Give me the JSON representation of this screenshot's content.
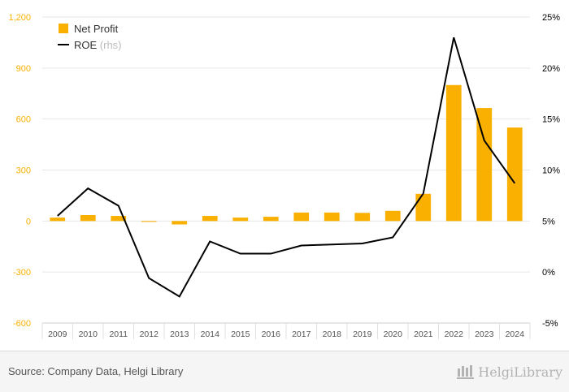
{
  "chart_data": {
    "type": "bar",
    "categories": [
      "2009",
      "2010",
      "2011",
      "2012",
      "2013",
      "2014",
      "2015",
      "2016",
      "2017",
      "2018",
      "2019",
      "2020",
      "2021",
      "2022",
      "2023",
      "2024"
    ],
    "series": [
      {
        "name": "Net Profit",
        "type": "bar",
        "axis": "left",
        "color": "#F9B000",
        "values": [
          20,
          35,
          30,
          -5,
          -20,
          30,
          20,
          25,
          50,
          50,
          48,
          60,
          160,
          800,
          665,
          550
        ]
      },
      {
        "name": "ROE",
        "axis_note": "(rhs)",
        "type": "line",
        "axis": "right",
        "color": "#000000",
        "values": [
          5.5,
          8.2,
          6.5,
          -0.6,
          -2.4,
          3.0,
          1.8,
          1.8,
          2.6,
          2.7,
          2.8,
          3.4,
          7.7,
          23.0,
          12.9,
          8.7
        ]
      }
    ],
    "yleft": {
      "ticks": [
        "1,200",
        "900",
        "600",
        "300",
        "0",
        "-300",
        "-600"
      ],
      "lim": [
        -600,
        1200
      ],
      "color": "#F9B000"
    },
    "yright": {
      "ticks": [
        "25%",
        "20%",
        "15%",
        "10%",
        "5%",
        "0%",
        "-5%"
      ],
      "lim": [
        -5,
        25
      ],
      "color": "#000000"
    },
    "legend_position": "top-left",
    "grid": true
  },
  "footer": {
    "source": "Source: Company Data, Helgi Library",
    "logo_text": "HelgiLibrary"
  }
}
